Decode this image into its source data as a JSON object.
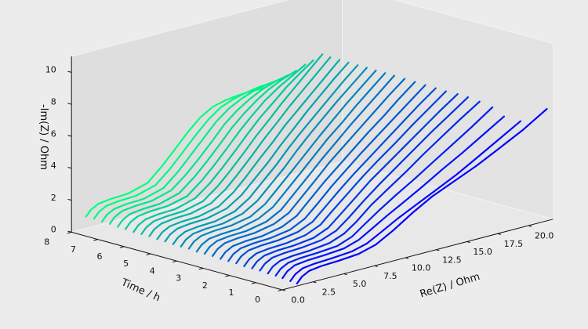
{
  "chart_data": {
    "type": "line",
    "projection": "3d",
    "colormap": {
      "start": "#0000ff",
      "end": "#00ff80"
    },
    "xlabel": "Re(Z) / Ohm",
    "ylabel": "Time / h",
    "zlabel": "-Im(Z) / Ohm",
    "xlim": [
      0.0,
      22.0
    ],
    "ylim": [
      0,
      8
    ],
    "zlim": [
      0,
      11
    ],
    "x_ticks": [
      "0.0",
      "2.5",
      "5.0",
      "7.5",
      "10.0",
      "12.5",
      "15.0",
      "17.5",
      "20.0"
    ],
    "y_ticks": [
      "0",
      "1",
      "2",
      "3",
      "4",
      "5",
      "6",
      "7",
      "8"
    ],
    "z_ticks": [
      "0",
      "2",
      "4",
      "6",
      "8",
      "10"
    ],
    "x_tick_values": [
      0.0,
      2.5,
      5.0,
      7.5,
      10.0,
      12.5,
      15.0,
      17.5,
      20.0
    ],
    "y_tick_values": [
      0,
      1,
      2,
      3,
      4,
      5,
      6,
      7,
      8
    ],
    "z_tick_values": [
      0,
      2,
      4,
      6,
      8,
      10
    ],
    "series": [
      {
        "time": 0.0,
        "re": [
          1.2,
          1.6,
          2.2,
          3.2,
          4.6,
          6.2,
          7.6,
          9.0,
          10.6,
          12.2,
          14.0,
          15.8,
          17.6,
          19.6,
          21.5
        ],
        "im": [
          0.15,
          0.5,
          0.75,
          0.85,
          0.9,
          1.0,
          1.3,
          1.9,
          2.7,
          3.4,
          4.0,
          4.6,
          5.3,
          6.1,
          7.0
        ]
      },
      {
        "time": 0.3,
        "re": [
          1.3,
          1.7,
          2.3,
          3.3,
          4.7,
          6.3,
          7.5,
          8.6,
          10.0,
          11.6,
          13.2,
          14.8,
          16.4,
          18.2,
          20.0
        ],
        "im": [
          0.15,
          0.5,
          0.75,
          0.85,
          0.9,
          1.0,
          1.25,
          1.7,
          2.3,
          2.9,
          3.5,
          4.1,
          4.8,
          5.6,
          6.4
        ]
      },
      {
        "time": 0.6,
        "re": [
          1.3,
          1.7,
          2.3,
          3.3,
          4.7,
          6.3,
          7.5,
          8.5,
          9.8,
          11.2,
          12.8,
          14.3,
          15.9,
          17.6,
          19.3
        ],
        "im": [
          0.2,
          0.55,
          0.8,
          0.9,
          0.95,
          1.05,
          1.35,
          1.8,
          2.4,
          3.0,
          3.7,
          4.4,
          5.1,
          5.9,
          6.7
        ]
      },
      {
        "time": 0.9,
        "re": [
          1.4,
          1.8,
          2.4,
          3.4,
          4.8,
          6.4,
          7.6,
          8.5,
          9.8,
          11.2,
          12.7,
          14.1,
          15.7,
          17.3,
          19.0
        ],
        "im": [
          0.2,
          0.55,
          0.8,
          0.9,
          0.95,
          1.05,
          1.4,
          1.9,
          2.6,
          3.3,
          4.0,
          4.7,
          5.5,
          6.3,
          7.2
        ]
      },
      {
        "time": 1.2,
        "re": [
          1.4,
          1.8,
          2.4,
          3.4,
          4.8,
          6.4,
          7.6,
          8.6,
          9.8,
          11.1,
          12.6,
          14.0,
          15.5,
          17.0,
          18.6
        ],
        "im": [
          0.2,
          0.55,
          0.8,
          0.9,
          0.95,
          1.1,
          1.45,
          2.0,
          2.8,
          3.5,
          4.3,
          5.1,
          5.9,
          6.7,
          7.5
        ]
      },
      {
        "time": 1.5,
        "re": [
          1.4,
          1.8,
          2.4,
          3.4,
          4.8,
          6.4,
          7.6,
          8.6,
          9.8,
          11.1,
          12.5,
          13.9,
          15.3,
          16.8,
          18.3
        ],
        "im": [
          0.25,
          0.6,
          0.85,
          0.95,
          1.0,
          1.15,
          1.5,
          2.1,
          2.9,
          3.7,
          4.5,
          5.3,
          6.1,
          6.9,
          7.7
        ]
      },
      {
        "time": 1.8,
        "re": [
          1.4,
          1.8,
          2.4,
          3.4,
          4.8,
          6.4,
          7.6,
          8.6,
          9.8,
          11.0,
          12.4,
          13.8,
          15.2,
          16.6,
          18.1
        ],
        "im": [
          0.25,
          0.6,
          0.85,
          0.95,
          1.0,
          1.15,
          1.55,
          2.2,
          3.0,
          3.8,
          4.6,
          5.4,
          6.2,
          7.0,
          7.8
        ]
      },
      {
        "time": 2.1,
        "re": [
          1.4,
          1.8,
          2.4,
          3.4,
          4.8,
          6.4,
          7.6,
          8.6,
          9.8,
          11.0,
          12.3,
          13.7,
          15.0,
          16.4,
          17.8
        ],
        "im": [
          0.25,
          0.6,
          0.85,
          0.95,
          1.0,
          1.2,
          1.6,
          2.3,
          3.1,
          3.9,
          4.7,
          5.5,
          6.3,
          7.1,
          7.9
        ]
      },
      {
        "time": 2.4,
        "re": [
          1.4,
          1.8,
          2.4,
          3.4,
          4.8,
          6.4,
          7.6,
          8.6,
          9.8,
          11.0,
          12.3,
          13.6,
          14.9,
          16.2,
          17.6
        ],
        "im": [
          0.3,
          0.65,
          0.9,
          1.0,
          1.05,
          1.25,
          1.65,
          2.35,
          3.2,
          4.0,
          4.8,
          5.6,
          6.4,
          7.2,
          8.0
        ]
      },
      {
        "time": 2.7,
        "re": [
          1.4,
          1.8,
          2.4,
          3.4,
          4.8,
          6.4,
          7.6,
          8.6,
          9.8,
          11.0,
          12.2,
          13.5,
          14.8,
          16.1,
          17.4
        ],
        "im": [
          0.3,
          0.65,
          0.9,
          1.0,
          1.05,
          1.25,
          1.7,
          2.4,
          3.3,
          4.1,
          4.9,
          5.7,
          6.5,
          7.3,
          8.1
        ]
      },
      {
        "time": 3.0,
        "re": [
          1.4,
          1.8,
          2.4,
          3.4,
          4.8,
          6.4,
          7.6,
          8.6,
          9.8,
          11.0,
          12.2,
          13.4,
          14.7,
          15.9,
          17.2
        ],
        "im": [
          0.3,
          0.65,
          0.9,
          1.0,
          1.05,
          1.3,
          1.75,
          2.5,
          3.4,
          4.2,
          5.0,
          5.8,
          6.6,
          7.4,
          8.2
        ]
      },
      {
        "time": 3.3,
        "re": [
          1.4,
          1.8,
          2.4,
          3.4,
          4.8,
          6.4,
          7.6,
          8.6,
          9.8,
          10.9,
          12.1,
          13.3,
          14.5,
          15.7,
          17.0
        ],
        "im": [
          0.35,
          0.7,
          0.95,
          1.05,
          1.1,
          1.35,
          1.8,
          2.55,
          3.45,
          4.3,
          5.1,
          5.9,
          6.7,
          7.5,
          8.3
        ]
      },
      {
        "time": 3.6,
        "re": [
          1.4,
          1.8,
          2.4,
          3.4,
          4.8,
          6.4,
          7.6,
          8.6,
          9.8,
          10.9,
          12.1,
          13.2,
          14.4,
          15.6,
          16.8
        ],
        "im": [
          0.35,
          0.7,
          0.95,
          1.05,
          1.1,
          1.35,
          1.85,
          2.6,
          3.5,
          4.35,
          5.2,
          6.0,
          6.8,
          7.6,
          8.4
        ]
      },
      {
        "time": 3.9,
        "re": [
          1.4,
          1.8,
          2.4,
          3.4,
          4.8,
          6.4,
          7.6,
          8.6,
          9.8,
          10.9,
          12.0,
          13.2,
          14.3,
          15.5,
          16.7
        ],
        "im": [
          0.35,
          0.7,
          0.95,
          1.05,
          1.1,
          1.4,
          1.9,
          2.65,
          3.55,
          4.4,
          5.25,
          6.05,
          6.85,
          7.65,
          8.45
        ]
      },
      {
        "time": 4.2,
        "re": [
          1.4,
          1.8,
          2.4,
          3.4,
          4.8,
          6.4,
          7.6,
          8.6,
          9.8,
          10.9,
          12.0,
          13.1,
          14.2,
          15.4,
          16.6
        ],
        "im": [
          0.4,
          0.75,
          1.0,
          1.1,
          1.15,
          1.4,
          1.95,
          2.7,
          3.6,
          4.45,
          5.3,
          6.1,
          6.9,
          7.7,
          8.5
        ]
      },
      {
        "time": 4.5,
        "re": [
          1.4,
          1.8,
          2.4,
          3.4,
          4.8,
          6.4,
          7.6,
          8.6,
          9.8,
          10.8,
          11.9,
          13.0,
          14.1,
          15.3,
          16.5
        ],
        "im": [
          0.4,
          0.75,
          1.0,
          1.1,
          1.15,
          1.45,
          2.0,
          2.75,
          3.65,
          4.5,
          5.35,
          6.15,
          6.95,
          7.75,
          8.55
        ]
      },
      {
        "time": 4.8,
        "re": [
          1.4,
          1.8,
          2.4,
          3.4,
          4.8,
          6.4,
          7.6,
          8.6,
          9.8,
          10.8,
          11.9,
          13.0,
          14.1,
          15.2,
          16.4
        ],
        "im": [
          0.4,
          0.75,
          1.0,
          1.1,
          1.15,
          1.45,
          2.05,
          2.8,
          3.7,
          4.55,
          5.4,
          6.2,
          7.0,
          7.8,
          8.6
        ]
      },
      {
        "time": 5.1,
        "re": [
          1.4,
          1.8,
          2.4,
          3.4,
          4.8,
          6.4,
          7.6,
          8.6,
          9.8,
          10.8,
          11.9,
          12.9,
          14.0,
          15.1,
          16.3
        ],
        "im": [
          0.45,
          0.8,
          1.05,
          1.15,
          1.2,
          1.5,
          2.1,
          2.85,
          3.75,
          4.6,
          5.45,
          6.25,
          7.05,
          7.85,
          8.65
        ]
      },
      {
        "time": 5.4,
        "re": [
          1.4,
          1.8,
          2.4,
          3.4,
          4.8,
          6.4,
          7.6,
          8.6,
          9.7,
          10.8,
          11.8,
          12.9,
          14.0,
          15.1,
          16.2
        ],
        "im": [
          0.45,
          0.8,
          1.05,
          1.15,
          1.2,
          1.5,
          2.15,
          2.9,
          3.8,
          4.65,
          5.5,
          6.3,
          7.1,
          7.9,
          8.7
        ]
      },
      {
        "time": 5.7,
        "re": [
          1.4,
          1.8,
          2.4,
          3.4,
          4.8,
          6.4,
          7.6,
          8.6,
          9.7,
          10.7,
          11.8,
          12.8,
          13.9,
          15.0,
          16.1
        ],
        "im": [
          0.5,
          0.85,
          1.1,
          1.2,
          1.25,
          1.55,
          2.2,
          2.95,
          3.85,
          4.7,
          5.55,
          6.35,
          7.15,
          7.95,
          8.75
        ]
      },
      {
        "time": 6.0,
        "re": [
          1.4,
          1.8,
          2.4,
          3.4,
          4.8,
          6.4,
          7.6,
          8.6,
          9.7,
          10.7,
          11.8,
          12.8,
          13.9,
          15.0,
          16.1
        ],
        "im": [
          0.5,
          0.85,
          1.1,
          1.2,
          1.25,
          1.55,
          2.25,
          3.0,
          3.9,
          4.75,
          5.6,
          6.4,
          7.2,
          8.0,
          8.8
        ]
      },
      {
        "time": 6.3,
        "re": [
          1.4,
          1.8,
          2.4,
          3.4,
          4.8,
          6.4,
          7.6,
          8.6,
          9.7,
          10.7,
          11.7,
          12.8,
          13.8,
          14.9,
          16.0
        ],
        "im": [
          0.5,
          0.85,
          1.1,
          1.2,
          1.25,
          1.6,
          2.3,
          3.05,
          3.95,
          4.8,
          5.6,
          6.35,
          7.05,
          7.7,
          8.3
        ]
      },
      {
        "time": 6.6,
        "re": [
          1.4,
          1.8,
          2.4,
          3.4,
          4.8,
          6.4,
          7.6,
          8.6,
          9.7,
          10.7,
          11.7,
          12.7,
          13.8,
          14.9,
          16.0
        ],
        "im": [
          0.55,
          0.9,
          1.15,
          1.25,
          1.3,
          1.6,
          2.35,
          3.1,
          4.0,
          4.85,
          5.6,
          6.3,
          6.9,
          7.4,
          7.9
        ]
      },
      {
        "time": 6.9,
        "re": [
          1.4,
          1.8,
          2.4,
          3.4,
          4.8,
          6.4,
          7.6,
          8.6,
          9.7,
          10.7,
          11.7,
          12.7,
          13.7,
          14.8,
          15.9
        ],
        "im": [
          0.55,
          0.9,
          1.15,
          1.25,
          1.3,
          1.65,
          2.4,
          3.15,
          4.05,
          4.9,
          5.6,
          6.2,
          6.7,
          7.1,
          7.4
        ]
      },
      {
        "time": 7.2,
        "re": [
          1.4,
          1.8,
          2.4,
          3.4,
          4.8,
          6.4,
          7.6,
          8.6,
          9.7,
          10.7,
          11.7,
          12.7,
          13.7,
          14.8,
          15.9
        ],
        "im": [
          0.6,
          0.95,
          1.2,
          1.3,
          1.35,
          1.7,
          2.45,
          3.2,
          4.1,
          4.95,
          5.6,
          6.1,
          6.5,
          6.8,
          7.0
        ]
      },
      {
        "time": 7.5,
        "re": [
          1.4,
          1.8,
          2.4,
          3.4,
          4.8,
          6.4,
          7.6,
          8.6,
          9.7,
          10.7,
          11.7,
          12.7,
          13.7,
          14.8,
          15.9
        ],
        "im": [
          0.6,
          0.95,
          1.2,
          1.3,
          1.35,
          1.7,
          2.5,
          3.3,
          4.2,
          5.0,
          5.6,
          6.0,
          6.3,
          6.5,
          6.6
        ]
      },
      {
        "time": 7.8,
        "re": [
          1.4,
          1.8,
          2.4,
          3.4,
          4.8,
          6.4,
          7.6,
          8.6,
          9.7,
          10.7,
          11.7,
          12.7,
          13.7,
          14.8,
          15.9
        ],
        "im": [
          0.65,
          1.0,
          1.25,
          1.35,
          1.4,
          1.75,
          2.55,
          3.35,
          4.25,
          5.0,
          5.55,
          5.85,
          6.05,
          6.2,
          6.25
        ]
      },
      {
        "time": 8.1,
        "re": [
          1.4,
          1.8,
          2.4,
          3.4,
          4.8,
          6.4,
          7.6,
          8.6,
          9.7,
          10.7,
          11.7,
          12.7,
          13.7,
          14.8,
          15.9
        ],
        "im": [
          0.65,
          1.0,
          1.25,
          1.35,
          1.4,
          1.75,
          2.6,
          3.4,
          4.3,
          5.0,
          5.45,
          5.65,
          5.75,
          5.8,
          5.8
        ]
      }
    ]
  }
}
